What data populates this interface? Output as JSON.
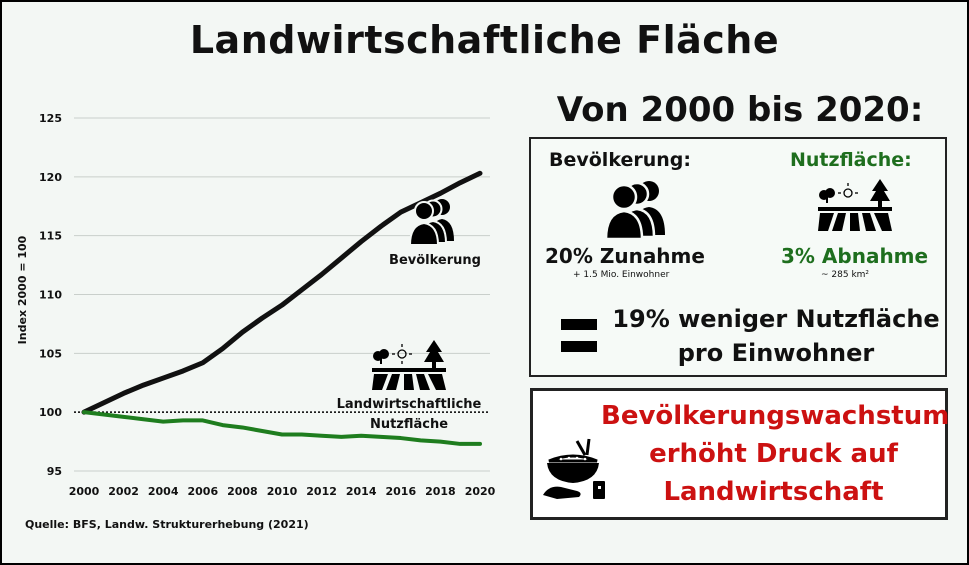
{
  "title": "Landwirtschaftliche Fläche",
  "source": "Quelle: BFS, Landw. Strukturerhebung (2021)",
  "colors": {
    "population": "#111111",
    "farmland": "#1e7d1e",
    "accent_green": "#1e6e1e",
    "accent_red": "#cc1111"
  },
  "icons": [
    "people-icon",
    "farmland-icon",
    "tree-icon",
    "sun-icon",
    "rice-bowl-hand-icon"
  ],
  "chart_data": {
    "type": "line",
    "ylabel": "Index 2000 = 100",
    "ylim": [
      95,
      125
    ],
    "yticks": [
      95,
      100,
      105,
      110,
      115,
      120,
      125
    ],
    "xticks": [
      2000,
      2002,
      2004,
      2006,
      2008,
      2010,
      2012,
      2014,
      2016,
      2018,
      2020
    ],
    "xlim": [
      2000,
      2020
    ],
    "grid": true,
    "reference_line": 100,
    "x": [
      2000,
      2001,
      2002,
      2003,
      2004,
      2005,
      2006,
      2007,
      2008,
      2009,
      2010,
      2011,
      2012,
      2013,
      2014,
      2015,
      2016,
      2017,
      2018,
      2019,
      2020
    ],
    "series": [
      {
        "name": "Bevölkerung",
        "values": [
          100,
          100.8,
          101.6,
          102.3,
          102.9,
          103.5,
          104.2,
          105.4,
          106.8,
          108.0,
          109.1,
          110.4,
          111.7,
          113.1,
          114.5,
          115.8,
          117.0,
          117.8,
          118.6,
          119.5,
          120.3
        ]
      },
      {
        "name": "Landwirtschaftliche Nutzfläche",
        "values": [
          100,
          99.8,
          99.6,
          99.4,
          99.2,
          99.3,
          99.3,
          98.9,
          98.7,
          98.4,
          98.1,
          98.1,
          98.0,
          97.9,
          98.0,
          97.9,
          97.8,
          97.6,
          97.5,
          97.3,
          97.3
        ]
      }
    ],
    "series_labels": {
      "population": "Bevölkerung",
      "farmland_line1": "Landwirtschaftliche",
      "farmland_line2": "Nutzfläche"
    }
  },
  "summary": {
    "heading": "Von 2000 bis 2020:",
    "population": {
      "title": "Bevölkerung:",
      "change": "20% Zunahme",
      "detail": "+ 1.5 Mio. Einwohner"
    },
    "farmland": {
      "title": "Nutzfläche:",
      "change": "3% Abnahme",
      "detail": "~ 285 km²"
    },
    "conclusion_line1": "19% weniger Nutzfläche",
    "conclusion_line2": "pro Einwohner"
  },
  "warning": {
    "line1": "Bevölkerungswachstum",
    "line2": "erhöht Druck auf",
    "line3": "Landwirtschaft"
  }
}
